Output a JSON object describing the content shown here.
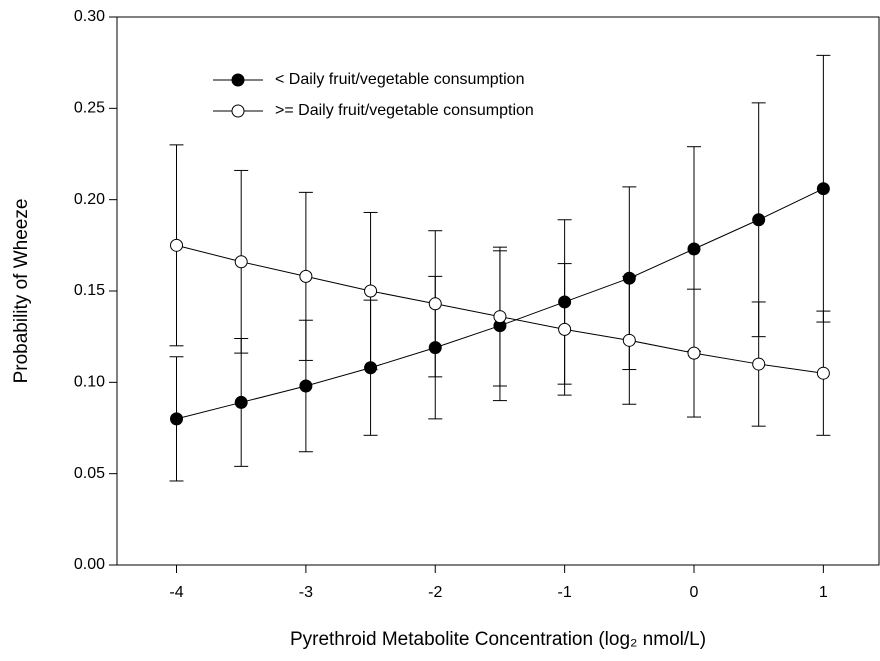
{
  "chart_data": {
    "type": "line",
    "xlabel": "Pyrethroid Metabolite Concentration (log₂ nmol/L)",
    "ylabel": "Probability of Wheeze",
    "x": [
      -4,
      -3.5,
      -3,
      -2.5,
      -2,
      -1.5,
      -1,
      -0.5,
      0,
      0.5,
      1
    ],
    "series": [
      {
        "name": "< Daily fruit/vegetable consumption",
        "color": "#000000",
        "marker": "filled",
        "values": [
          0.08,
          0.089,
          0.098,
          0.108,
          0.119,
          0.131,
          0.144,
          0.157,
          0.173,
          0.189,
          0.206
        ],
        "errors": [
          0.034,
          0.035,
          0.036,
          0.037,
          0.039,
          0.041,
          0.045,
          0.05,
          0.056,
          0.064,
          0.073
        ]
      },
      {
        "name": ">= Daily fruit/vegetable consumption",
        "color": "#000000",
        "marker": "open",
        "values": [
          0.175,
          0.166,
          0.158,
          0.15,
          0.143,
          0.136,
          0.129,
          0.123,
          0.116,
          0.11,
          0.105
        ],
        "errors": [
          0.055,
          0.05,
          0.046,
          0.043,
          0.04,
          0.038,
          0.036,
          0.035,
          0.035,
          0.034,
          0.034
        ]
      }
    ],
    "xlim": [
      -4.46,
      1.43
    ],
    "xticks": [
      -4,
      -3,
      -2,
      -1,
      0,
      1
    ],
    "ylim": [
      0,
      0.3
    ],
    "yticks": [
      {
        "value": 0,
        "label": "0.00"
      },
      {
        "value": 0.05,
        "label": "0.05"
      },
      {
        "value": 0.1,
        "label": "0.10"
      },
      {
        "value": 0.15,
        "label": "0.15"
      },
      {
        "value": 0.2,
        "label": "0.20"
      },
      {
        "value": 0.25,
        "label": "0.25"
      },
      {
        "value": 0.3,
        "label": "0.30"
      }
    ],
    "legend": "upper-left"
  }
}
